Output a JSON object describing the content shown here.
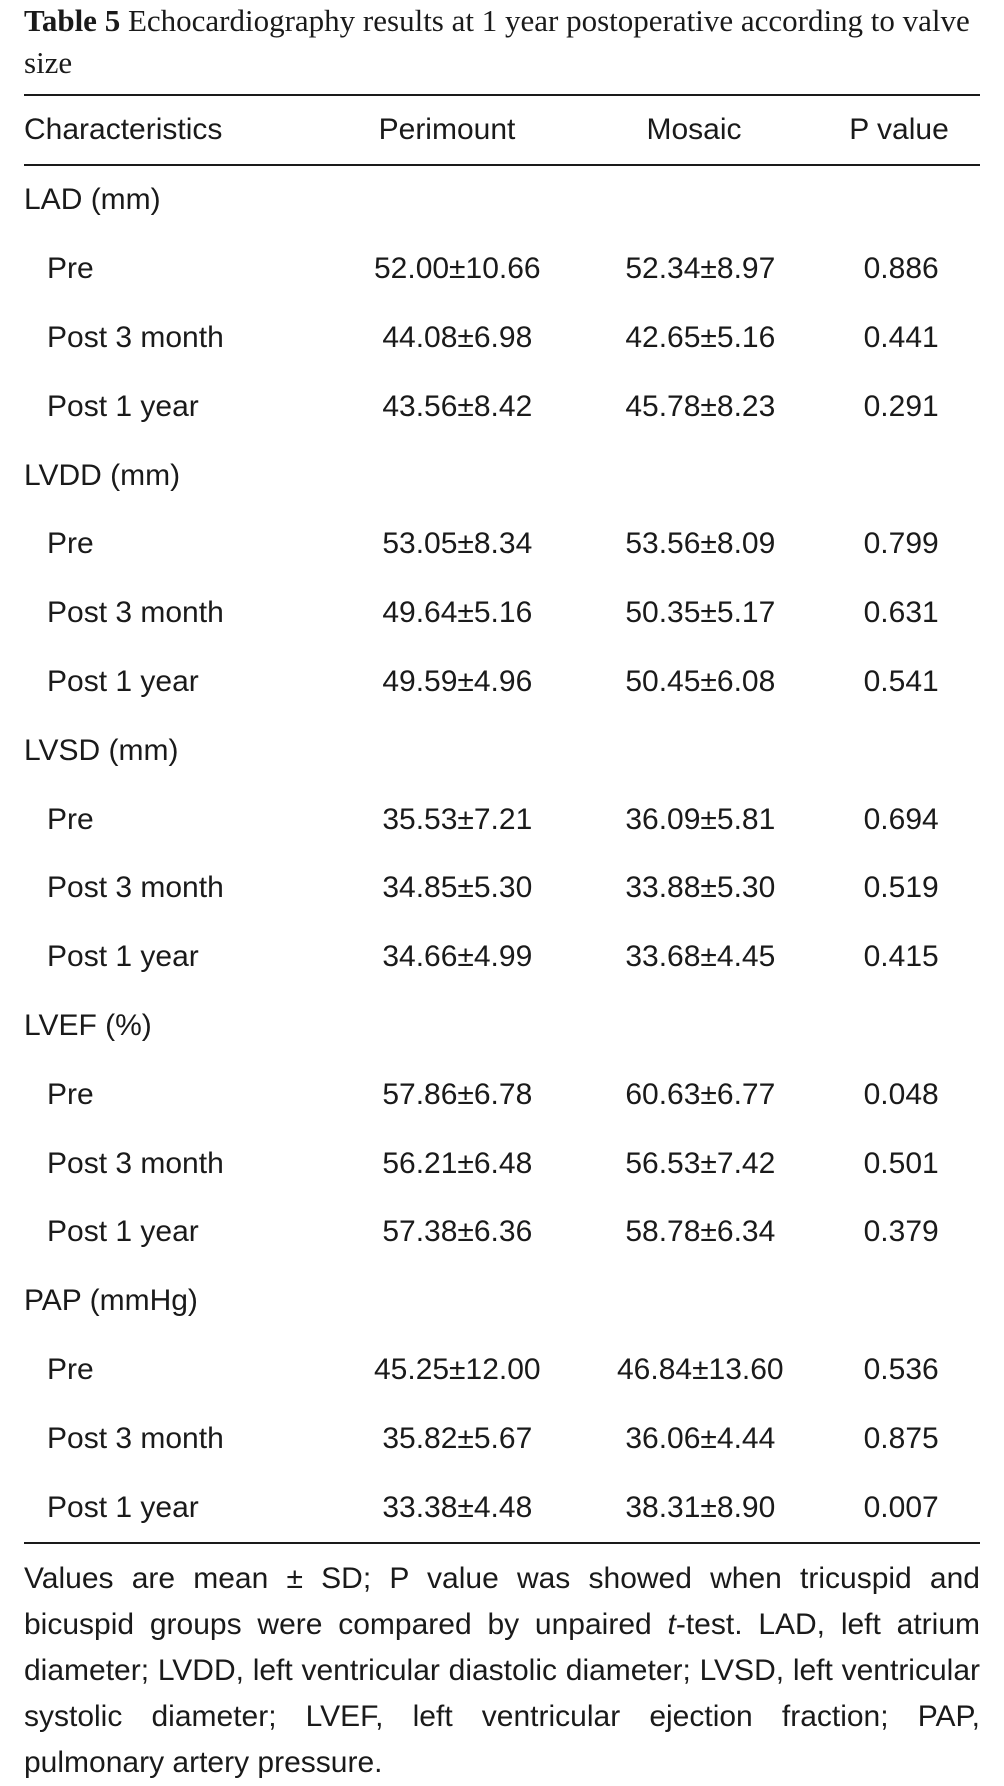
{
  "caption": {
    "label": "Table 5",
    "text": "Echocardiography results at 1 year postoperative according to valve size"
  },
  "table": {
    "headers": [
      "Characteristics",
      "Perimount",
      "Mosaic",
      "P value"
    ],
    "groups": [
      {
        "name": "LAD (mm)",
        "rows": [
          {
            "label": "Pre",
            "perimount": "52.00±10.66",
            "mosaic": "52.34±8.97",
            "p": "0.886"
          },
          {
            "label": "Post 3 month",
            "perimount": "44.08±6.98",
            "mosaic": "42.65±5.16",
            "p": "0.441"
          },
          {
            "label": "Post 1 year",
            "perimount": "43.56±8.42",
            "mosaic": "45.78±8.23",
            "p": "0.291"
          }
        ]
      },
      {
        "name": "LVDD (mm)",
        "rows": [
          {
            "label": "Pre",
            "perimount": "53.05±8.34",
            "mosaic": "53.56±8.09",
            "p": "0.799"
          },
          {
            "label": "Post 3 month",
            "perimount": "49.64±5.16",
            "mosaic": "50.35±5.17",
            "p": "0.631"
          },
          {
            "label": "Post 1 year",
            "perimount": "49.59±4.96",
            "mosaic": "50.45±6.08",
            "p": "0.541"
          }
        ]
      },
      {
        "name": "LVSD (mm)",
        "rows": [
          {
            "label": "Pre",
            "perimount": "35.53±7.21",
            "mosaic": "36.09±5.81",
            "p": "0.694"
          },
          {
            "label": "Post 3 month",
            "perimount": "34.85±5.30",
            "mosaic": "33.88±5.30",
            "p": "0.519"
          },
          {
            "label": "Post 1 year",
            "perimount": "34.66±4.99",
            "mosaic": "33.68±4.45",
            "p": "0.415"
          }
        ]
      },
      {
        "name": "LVEF (%)",
        "rows": [
          {
            "label": "Pre",
            "perimount": "57.86±6.78",
            "mosaic": "60.63±6.77",
            "p": "0.048"
          },
          {
            "label": "Post 3 month",
            "perimount": "56.21±6.48",
            "mosaic": "56.53±7.42",
            "p": "0.501"
          },
          {
            "label": "Post 1 year",
            "perimount": "57.38±6.36",
            "mosaic": "58.78±6.34",
            "p": "0.379"
          }
        ]
      },
      {
        "name": "PAP (mmHg)",
        "rows": [
          {
            "label": "Pre",
            "perimount": "45.25±12.00",
            "mosaic": "46.84±13.60",
            "p": "0.536"
          },
          {
            "label": "Post 3 month",
            "perimount": "35.82±5.67",
            "mosaic": "36.06±4.44",
            "p": "0.875"
          },
          {
            "label": "Post 1 year",
            "perimount": "33.38±4.48",
            "mosaic": "38.31±8.90",
            "p": "0.007"
          }
        ]
      }
    ]
  },
  "footnote": {
    "before_italic": "Values are mean ± SD; P value was showed when tricuspid and bicuspid groups were compared by unpaired ",
    "italic": "t",
    "after_italic": "-test. LAD, left atrium diameter; LVDD, left ventricular diastolic diameter; LVSD, left ventricular systolic diameter; LVEF, left ventricular ejection fraction; PAP, pulmonary artery pressure."
  }
}
